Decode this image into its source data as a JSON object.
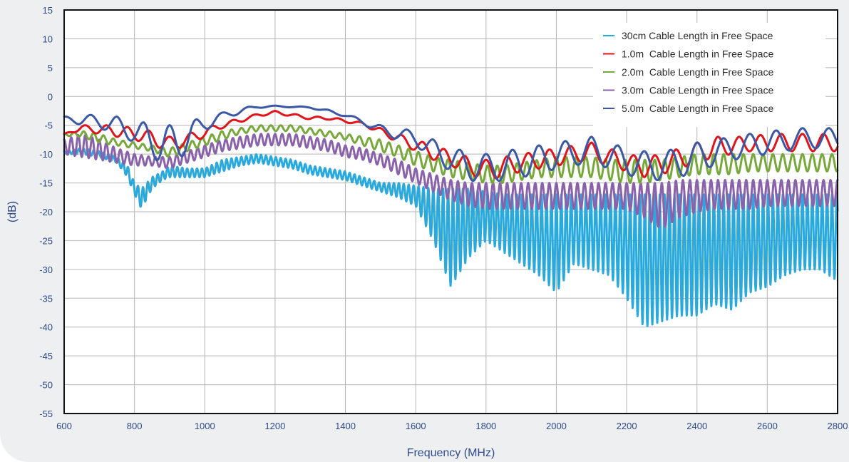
{
  "chart_data": {
    "type": "line",
    "xlabel": "Frequency (MHz)",
    "ylabel": "(dB)",
    "xlim": [
      600,
      2800
    ],
    "ylim": [
      -55,
      15
    ],
    "x_ticks": [
      600,
      800,
      1000,
      1200,
      1400,
      1600,
      1800,
      2000,
      2200,
      2400,
      2600,
      2800
    ],
    "y_ticks": [
      15,
      10,
      5,
      0,
      -5,
      -10,
      -15,
      -20,
      -25,
      -30,
      -35,
      -40,
      -45,
      -50,
      -55
    ],
    "grid": true,
    "legend_position": "top-right",
    "series": [
      {
        "name": "30cm Cable Length in Free Space",
        "color": "#2aa9dd",
        "x": [
          600,
          650,
          700,
          750,
          780,
          800,
          820,
          850,
          880,
          900,
          950,
          1000,
          1050,
          1100,
          1150,
          1200,
          1250,
          1300,
          1350,
          1400,
          1450,
          1500,
          1550,
          1600,
          1650,
          1700,
          1750,
          1800,
          1850,
          1900,
          1950,
          2000,
          2050,
          2100,
          2150,
          2200,
          2250,
          2300,
          2350,
          2400,
          2450,
          2500,
          2550,
          2600,
          2650,
          2700,
          2750,
          2800
        ],
        "upper": [
          -9.5,
          -9,
          -9.5,
          -10.5,
          -12,
          -15,
          -16,
          -14,
          -13,
          -12,
          -12.5,
          -12.5,
          -11,
          -10.5,
          -10,
          -10.5,
          -11,
          -12,
          -12.5,
          -13,
          -14,
          -15,
          -15,
          -15.5,
          -16,
          -16,
          -16,
          -16.5,
          -17,
          -17,
          -17,
          -17,
          -17,
          -17,
          -17,
          -17,
          -17,
          -17,
          -17,
          -17,
          -17,
          -17,
          -17,
          -17,
          -17,
          -17,
          -17,
          -17
        ],
        "lower": [
          -10,
          -10,
          -10.5,
          -11.5,
          -14,
          -17,
          -19.5,
          -16,
          -14.5,
          -14,
          -14,
          -14,
          -13,
          -12,
          -11.5,
          -12,
          -12.5,
          -13.5,
          -14,
          -14.5,
          -15.5,
          -16.5,
          -17.5,
          -19,
          -25,
          -33,
          -28,
          -25,
          -27,
          -29,
          -31,
          -34,
          -29,
          -30,
          -31,
          -35,
          -40,
          -39,
          -38,
          -38,
          -36,
          -37,
          -34,
          -33,
          -31,
          -30,
          -30,
          -32
        ],
        "period": [
          14,
          14,
          14,
          14,
          14,
          14,
          14,
          14,
          14,
          14,
          14,
          14,
          14,
          14,
          14,
          14,
          14,
          14,
          14,
          14,
          14,
          14,
          14,
          14,
          14,
          14,
          14,
          14,
          14,
          14,
          14,
          14,
          14,
          14,
          14,
          14,
          14,
          14,
          14,
          14,
          14,
          14,
          14,
          14,
          14,
          14,
          14,
          14
        ]
      },
      {
        "name": "1.0m  Cable Length in Free Space",
        "color": "#e0151b",
        "x": [
          600,
          650,
          700,
          750,
          800,
          850,
          900,
          950,
          1000,
          1050,
          1100,
          1150,
          1200,
          1250,
          1300,
          1350,
          1400,
          1450,
          1500,
          1550,
          1600,
          1650,
          1700,
          1750,
          1800,
          1850,
          1900,
          1950,
          2000,
          2050,
          2100,
          2150,
          2200,
          2250,
          2300,
          2350,
          2400,
          2450,
          2500,
          2550,
          2600,
          2650,
          2700,
          2750,
          2800
        ],
        "upper": [
          -6.5,
          -5,
          -5,
          -5,
          -5.5,
          -6,
          -7,
          -6.5,
          -5.5,
          -4.5,
          -3.8,
          -3,
          -2.5,
          -3,
          -3.5,
          -3.5,
          -4,
          -4.5,
          -5.5,
          -6.5,
          -7.5,
          -8.5,
          -9.5,
          -10.5,
          -11,
          -10.5,
          -10,
          -9.5,
          -9,
          -8.5,
          -8,
          -9,
          -10,
          -10.5,
          -10,
          -9,
          -8,
          -7,
          -7,
          -7,
          -6.5,
          -6.5,
          -6.5,
          -6.5,
          -6.5
        ],
        "lower": [
          -6.5,
          -6,
          -6.5,
          -7,
          -7.5,
          -8.5,
          -9.5,
          -8.5,
          -7,
          -5.5,
          -4.5,
          -3.5,
          -3,
          -3.5,
          -4,
          -4,
          -4.5,
          -5,
          -6.5,
          -8,
          -9.5,
          -11,
          -12,
          -13.5,
          -14.5,
          -14,
          -13,
          -12.5,
          -12,
          -11.5,
          -11,
          -12,
          -13,
          -14,
          -13.5,
          -12.5,
          -11.5,
          -10.5,
          -10,
          -9.5,
          -9.5,
          -9.5,
          -9.5,
          -9.5,
          -9.5
        ],
        "period": [
          60,
          60,
          60,
          60,
          60,
          60,
          60,
          60,
          60,
          60,
          60,
          60,
          60,
          60,
          60,
          60,
          60,
          60,
          60,
          60,
          60,
          60,
          60,
          60,
          60,
          60,
          60,
          60,
          60,
          60,
          60,
          60,
          60,
          60,
          60,
          60,
          60,
          60,
          60,
          60,
          60,
          60,
          60,
          60,
          60
        ]
      },
      {
        "name": "2.0m  Cable Length in Free Space",
        "color": "#76a83a",
        "x": [
          600,
          650,
          700,
          750,
          800,
          850,
          900,
          950,
          1000,
          1050,
          1100,
          1150,
          1200,
          1250,
          1300,
          1350,
          1400,
          1450,
          1500,
          1550,
          1600,
          1650,
          1700,
          1750,
          1800,
          1850,
          1900,
          1950,
          2000,
          2050,
          2100,
          2150,
          2200,
          2250,
          2300,
          2350,
          2400,
          2450,
          2500,
          2550,
          2600,
          2650,
          2700,
          2750,
          2800
        ],
        "upper": [
          -6.5,
          -6,
          -6.5,
          -7.5,
          -8,
          -8.5,
          -9,
          -8,
          -7,
          -6,
          -5.5,
          -5,
          -5,
          -5,
          -5.5,
          -6,
          -6.5,
          -7,
          -7.5,
          -8.5,
          -9.5,
          -10.5,
          -11,
          -11.5,
          -12,
          -12,
          -11.5,
          -11,
          -10.5,
          -10.5,
          -10.5,
          -11,
          -11,
          -11,
          -11,
          -10.5,
          -10,
          -10,
          -10,
          -10,
          -10,
          -10,
          -10,
          -10,
          -10
        ],
        "lower": [
          -6.8,
          -7,
          -8,
          -8.5,
          -9,
          -9.5,
          -10.5,
          -9.5,
          -8.5,
          -7.5,
          -6.5,
          -6,
          -6,
          -6,
          -6.5,
          -7,
          -7.5,
          -8.5,
          -9.5,
          -10.5,
          -12,
          -13,
          -14,
          -14.5,
          -15,
          -15,
          -14.5,
          -14,
          -14,
          -14,
          -14,
          -14.5,
          -15,
          -15,
          -14.5,
          -14,
          -13.5,
          -13.5,
          -13.5,
          -13,
          -13,
          -13,
          -13,
          -13,
          -13
        ],
        "period": [
          28,
          28,
          28,
          28,
          28,
          28,
          28,
          28,
          28,
          28,
          28,
          28,
          28,
          28,
          28,
          28,
          28,
          28,
          28,
          28,
          28,
          28,
          28,
          28,
          28,
          28,
          28,
          28,
          28,
          28,
          28,
          28,
          28,
          28,
          28,
          28,
          28,
          28,
          28,
          28,
          28,
          28,
          28,
          28,
          28
        ]
      },
      {
        "name": "3.0m  Cable Length in Free Space",
        "color": "#8a62ab",
        "x": [
          600,
          650,
          700,
          750,
          800,
          850,
          900,
          950,
          1000,
          1050,
          1100,
          1150,
          1200,
          1250,
          1300,
          1350,
          1400,
          1450,
          1500,
          1550,
          1600,
          1650,
          1700,
          1750,
          1800,
          1850,
          1900,
          1950,
          2000,
          2050,
          2100,
          2150,
          2200,
          2250,
          2300,
          2350,
          2400,
          2450,
          2500,
          2550,
          2600,
          2650,
          2700,
          2750,
          2800
        ],
        "upper": [
          -7.5,
          -6.5,
          -7.5,
          -9,
          -10,
          -10.5,
          -10.5,
          -9.5,
          -8.5,
          -7.5,
          -7,
          -6.5,
          -6.5,
          -6.5,
          -7,
          -7.5,
          -8.5,
          -9,
          -10,
          -11,
          -12.5,
          -13.5,
          -14.5,
          -15,
          -15,
          -15,
          -15,
          -15,
          -15,
          -15,
          -15,
          -15,
          -15,
          -15,
          -15,
          -14.5,
          -14.5,
          -14.5,
          -14.5,
          -14.5,
          -14.5,
          -14.5,
          -14.5,
          -14.5,
          -14.5
        ],
        "lower": [
          -10,
          -10.5,
          -11,
          -11.5,
          -12,
          -12,
          -12.5,
          -11.5,
          -10.5,
          -9.5,
          -9,
          -8.5,
          -8.5,
          -8.5,
          -9,
          -9.5,
          -10.5,
          -11,
          -12,
          -13.5,
          -15,
          -16.5,
          -18,
          -19,
          -19.5,
          -19.5,
          -19.5,
          -19.5,
          -19.5,
          -19.5,
          -19.5,
          -19.5,
          -19.5,
          -21,
          -23,
          -21,
          -20,
          -19.5,
          -19.5,
          -19.5,
          -19,
          -19,
          -19,
          -19,
          -19
        ],
        "period": [
          20,
          20,
          20,
          20,
          20,
          20,
          20,
          20,
          20,
          20,
          20,
          20,
          20,
          20,
          20,
          20,
          20,
          20,
          20,
          20,
          20,
          20,
          20,
          20,
          20,
          20,
          20,
          20,
          20,
          20,
          20,
          20,
          20,
          20,
          20,
          20,
          20,
          20,
          20,
          20,
          20,
          20,
          20,
          20,
          20
        ]
      },
      {
        "name": "5.0m  Cable Length in Free Space",
        "color": "#3a58a6",
        "x": [
          600,
          650,
          700,
          750,
          800,
          850,
          900,
          950,
          1000,
          1050,
          1100,
          1150,
          1200,
          1250,
          1300,
          1350,
          1400,
          1450,
          1500,
          1550,
          1600,
          1650,
          1700,
          1750,
          1800,
          1850,
          1900,
          1950,
          2000,
          2050,
          2100,
          2150,
          2200,
          2250,
          2300,
          2350,
          2400,
          2450,
          2500,
          2550,
          2600,
          2650,
          2700,
          2750,
          2800
        ],
        "upper": [
          -3.5,
          -3.2,
          -3.2,
          -3.5,
          -4.5,
          -4.5,
          -5,
          -4.5,
          -3.5,
          -2.8,
          -2,
          -1.6,
          -1.6,
          -1.7,
          -1.8,
          -2.3,
          -3,
          -4,
          -5,
          -5.5,
          -6,
          -7.5,
          -9,
          -9.5,
          -10,
          -9.5,
          -9,
          -8.5,
          -8,
          -7.5,
          -7,
          -8,
          -9,
          -9.5,
          -9.5,
          -9,
          -8,
          -7.5,
          -7,
          -6.5,
          -6,
          -5.8,
          -5.5,
          -5.5,
          -5.5
        ],
        "lower": [
          -4,
          -5,
          -5.5,
          -6.5,
          -8,
          -10.5,
          -12.5,
          -9.5,
          -6,
          -4,
          -3,
          -2,
          -1.8,
          -1.9,
          -2,
          -2.8,
          -3.5,
          -4.8,
          -6.5,
          -7.5,
          -8.5,
          -11,
          -13,
          -14.5,
          -15,
          -14.5,
          -14,
          -13.5,
          -12.5,
          -12,
          -11.5,
          -12.5,
          -13.5,
          -14.5,
          -14.5,
          -14,
          -13,
          -12,
          -11,
          -10.5,
          -10,
          -9.5,
          -9,
          -9,
          -9
        ],
        "period": [
          75,
          75,
          75,
          75,
          75,
          75,
          75,
          75,
          75,
          75,
          75,
          75,
          75,
          75,
          75,
          75,
          75,
          75,
          75,
          75,
          75,
          75,
          75,
          75,
          75,
          75,
          75,
          75,
          75,
          75,
          75,
          75,
          75,
          75,
          75,
          75,
          75,
          75,
          75,
          75,
          75,
          75,
          75,
          75,
          75
        ]
      }
    ]
  }
}
